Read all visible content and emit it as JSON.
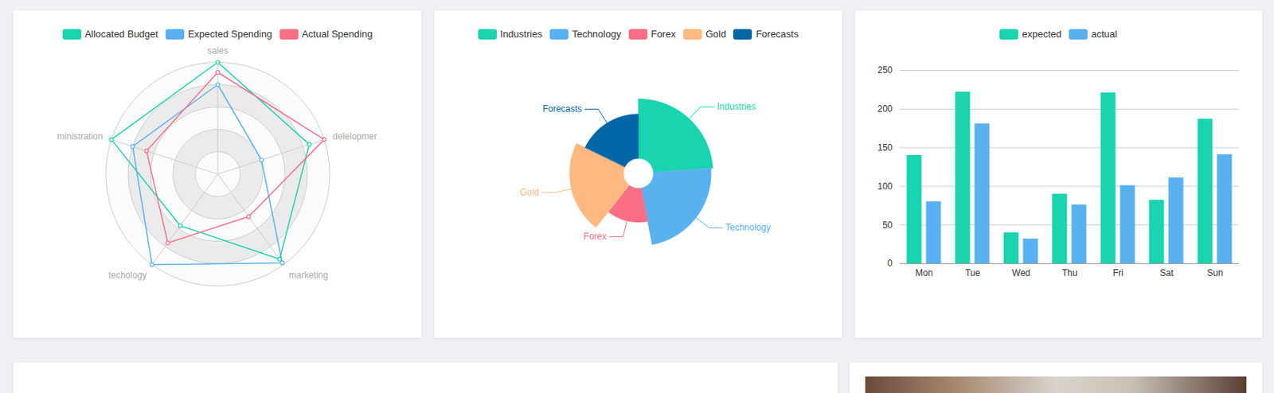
{
  "chart_data": [
    {
      "type": "radar",
      "categories": [
        "sales",
        "delelopmer",
        "marketing",
        "techology",
        "ministration"
      ],
      "series": [
        {
          "name": "Allocated Budget",
          "color": "#19d4ae",
          "values": [
            100,
            86,
            94,
            57,
            100
          ]
        },
        {
          "name": "Expected Spending",
          "color": "#5ab1ef",
          "values": [
            80,
            41,
            98,
            100,
            80
          ]
        },
        {
          "name": "Actual Spending",
          "color": "#fa6e86",
          "values": [
            91,
            100,
            47,
            76,
            67
          ]
        }
      ],
      "ylim": [
        0,
        100
      ],
      "yticks": [
        20,
        40,
        60,
        80,
        100
      ],
      "tick_labels": false,
      "legend": "top"
    },
    {
      "type": "rose",
      "categories": [
        "Industries",
        "Technology",
        "Forex",
        "Gold",
        "Forecasts"
      ],
      "values": [
        23.9,
        23.1,
        13.6,
        21.6,
        17.8
      ],
      "colors": [
        "#19d4ae",
        "#5ab1ef",
        "#fa6e86",
        "#ffb980",
        "#0067a6"
      ],
      "legend": "top"
    },
    {
      "type": "bar",
      "categories": [
        "Mon",
        "Tue",
        "Wed",
        "Thu",
        "Fri",
        "Sat",
        "Sun"
      ],
      "series": [
        {
          "name": "expected",
          "color": "#19d4ae",
          "values": [
            140,
            222,
            40,
            90,
            221,
            82,
            187
          ]
        },
        {
          "name": "actual",
          "color": "#5ab1ef",
          "values": [
            80,
            181,
            32,
            76,
            101,
            111,
            141
          ]
        }
      ],
      "ylim": [
        0,
        250
      ],
      "yticks": [
        0,
        50,
        100,
        150,
        200,
        250
      ],
      "grid": true,
      "legend": "top"
    }
  ]
}
